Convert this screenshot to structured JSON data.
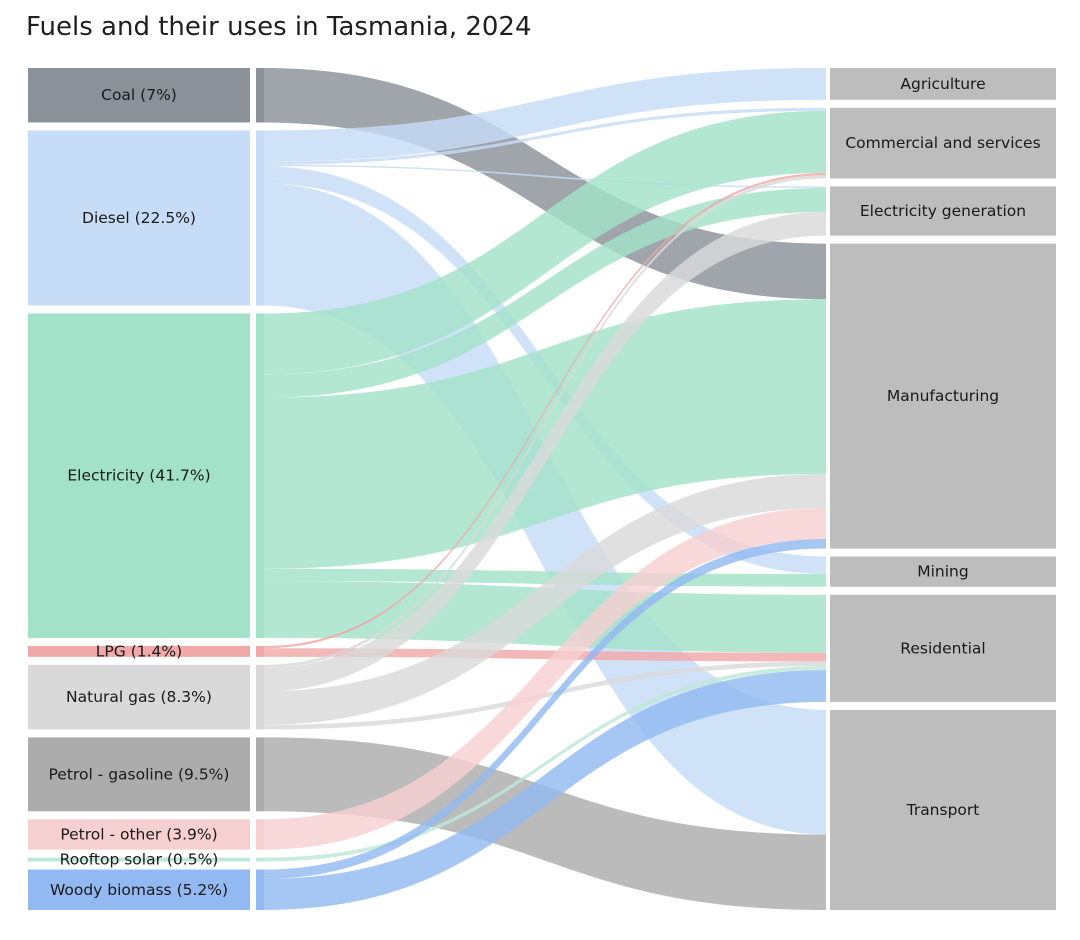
{
  "chart_data": {
    "type": "sankey",
    "title": "Fuels and their uses in Tasmania, 2024",
    "sources": [
      {
        "id": "coal",
        "label": "Coal (7%)",
        "value": 7.0,
        "color": "#8b9199"
      },
      {
        "id": "diesel",
        "label": "Diesel (22.5%)",
        "value": 22.5,
        "color": "#c6dcf7"
      },
      {
        "id": "electricity",
        "label": "Electricity (41.7%)",
        "value": 41.7,
        "color": "#a2e2c8"
      },
      {
        "id": "lpg",
        "label": "LPG (1.4%)",
        "value": 1.4,
        "color": "#f0a8a8"
      },
      {
        "id": "gas",
        "label": "Natural gas (8.3%)",
        "value": 8.3,
        "color": "#d9d9d9"
      },
      {
        "id": "gasoline",
        "label": "Petrol - gasoline (9.5%)",
        "value": 9.5,
        "color": "#acacac"
      },
      {
        "id": "petrol_other",
        "label": "Petrol - other (3.9%)",
        "value": 3.9,
        "color": "#f6cfd1"
      },
      {
        "id": "solar",
        "label": "Rooftop solar (0.5%)",
        "value": 0.5,
        "color": "#bde8d7"
      },
      {
        "id": "biomass",
        "label": "Woody biomass (5.2%)",
        "value": 5.2,
        "color": "#93b9f2"
      }
    ],
    "targets": [
      {
        "id": "agriculture",
        "label": "Agriculture",
        "color": "#bdbdbd"
      },
      {
        "id": "commercial",
        "label": "Commercial and services",
        "color": "#bdbdbd"
      },
      {
        "id": "elecgen",
        "label": "Electricity generation",
        "color": "#bdbdbd"
      },
      {
        "id": "manufacturing",
        "label": "Manufacturing",
        "color": "#bdbdbd"
      },
      {
        "id": "mining",
        "label": "Mining",
        "color": "#bdbdbd"
      },
      {
        "id": "residential",
        "label": "Residential",
        "color": "#bdbdbd"
      },
      {
        "id": "transport",
        "label": "Transport",
        "color": "#bdbdbd"
      }
    ],
    "flows": [
      {
        "source": "coal",
        "target": "manufacturing",
        "value": 7.0
      },
      {
        "source": "diesel",
        "target": "agriculture",
        "value": 4.0
      },
      {
        "source": "diesel",
        "target": "commercial",
        "value": 0.4
      },
      {
        "source": "diesel",
        "target": "elecgen",
        "value": 0.2
      },
      {
        "source": "diesel",
        "target": "mining",
        "value": 2.2
      },
      {
        "source": "diesel",
        "target": "transport",
        "value": 15.7
      },
      {
        "source": "electricity",
        "target": "commercial",
        "value": 7.8
      },
      {
        "source": "electricity",
        "target": "elecgen",
        "value": 3.0
      },
      {
        "source": "electricity",
        "target": "manufacturing",
        "value": 22.0
      },
      {
        "source": "electricity",
        "target": "mining",
        "value": 1.6
      },
      {
        "source": "electricity",
        "target": "residential",
        "value": 7.3
      },
      {
        "source": "lpg",
        "target": "commercial",
        "value": 0.3
      },
      {
        "source": "lpg",
        "target": "residential",
        "value": 1.1
      },
      {
        "source": "gas",
        "target": "commercial",
        "value": 0.4
      },
      {
        "source": "gas",
        "target": "elecgen",
        "value": 3.0
      },
      {
        "source": "gas",
        "target": "manufacturing",
        "value": 4.3
      },
      {
        "source": "gas",
        "target": "residential",
        "value": 0.6
      },
      {
        "source": "gasoline",
        "target": "transport",
        "value": 9.5
      },
      {
        "source": "petrol_other",
        "target": "manufacturing",
        "value": 3.9
      },
      {
        "source": "solar",
        "target": "residential",
        "value": 0.5
      },
      {
        "source": "biomass",
        "target": "manufacturing",
        "value": 1.2
      },
      {
        "source": "biomass",
        "target": "residential",
        "value": 4.0
      }
    ]
  }
}
